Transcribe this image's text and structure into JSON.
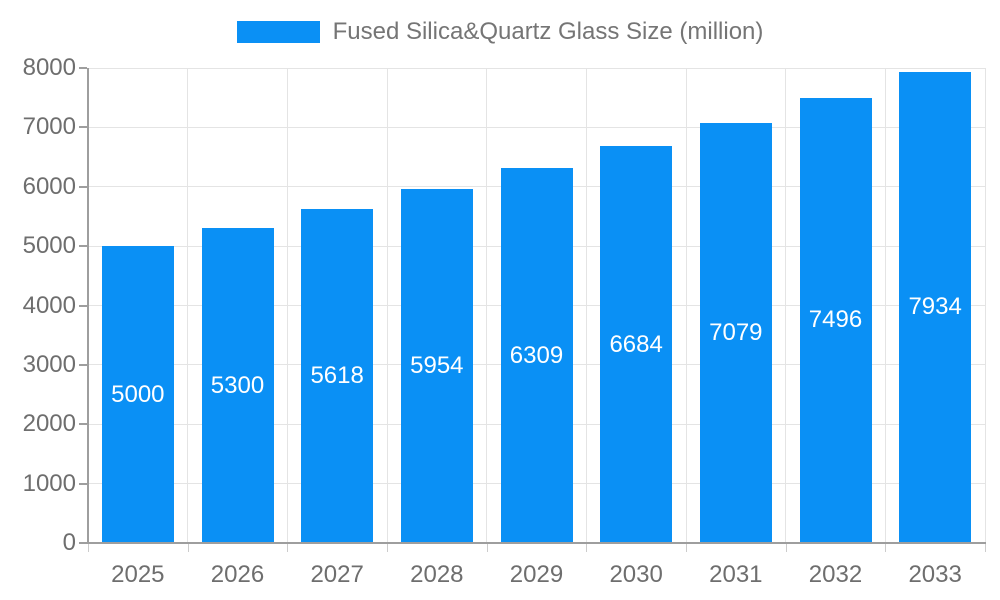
{
  "legend": {
    "label": "Fused Silica&Quartz Glass Size (million)"
  },
  "chart_data": {
    "type": "bar",
    "title": "Fused Silica&Quartz Glass Size (million)",
    "categories": [
      "2025",
      "2026",
      "2027",
      "2028",
      "2029",
      "2030",
      "2031",
      "2032",
      "2033"
    ],
    "series": [
      {
        "name": "Fused Silica&Quartz Glass Size (million)",
        "values": [
          5000,
          5300,
          5618,
          5954,
          6309,
          6684,
          7079,
          7496,
          7934
        ]
      }
    ],
    "values": [
      5000,
      5300,
      5618,
      5954,
      6309,
      6684,
      7079,
      7496,
      7934
    ],
    "bar_value_labels": [
      "5000",
      "5300",
      "5618",
      "5954",
      "6309",
      "6684",
      "7079",
      "7496",
      "7934"
    ],
    "xlabel": "",
    "ylabel": "",
    "ylim": [
      0,
      8000
    ],
    "y_ticks": [
      0,
      1000,
      2000,
      3000,
      4000,
      5000,
      6000,
      7000,
      8000
    ],
    "grid": true,
    "legend_position": "top-center"
  },
  "colors": {
    "bar": "#0a90f5",
    "bar_label": "#ffffff",
    "axis_text": "#6e6e6e",
    "legend_text": "#757575",
    "gridline": "#e4e4e4",
    "axis_line": "#9e9e9e",
    "y_tick": "#9e9e9e",
    "x_tick": "#cccccc",
    "background": "#ffffff"
  }
}
